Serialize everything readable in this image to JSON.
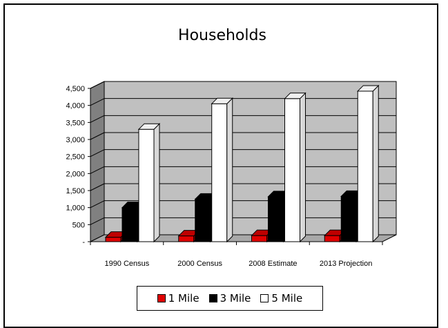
{
  "chart_data": {
    "type": "bar",
    "title": "Households",
    "categories": [
      "1990 Census",
      "2000 Census",
      "2008 Estimate",
      "2013 Projection"
    ],
    "series": [
      {
        "name": "1 Mile",
        "color": "#e00000",
        "values": [
          130,
          170,
          180,
          180
        ]
      },
      {
        "name": "3 Mile",
        "color": "#000000",
        "values": [
          1000,
          1250,
          1320,
          1330
        ]
      },
      {
        "name": "5 Mile",
        "color": "#ffffff",
        "values": [
          3300,
          4050,
          4200,
          4420
        ]
      }
    ],
    "y_ticks": [
      "4,500",
      "4,000",
      "3,500",
      "3,000",
      "2,500",
      "2,000",
      "1,500",
      "1,000",
      "500",
      "-"
    ],
    "ylim": [
      0,
      4500
    ],
    "grid": true,
    "legend_position": "bottom",
    "wall_color": "#c0c0c0"
  }
}
